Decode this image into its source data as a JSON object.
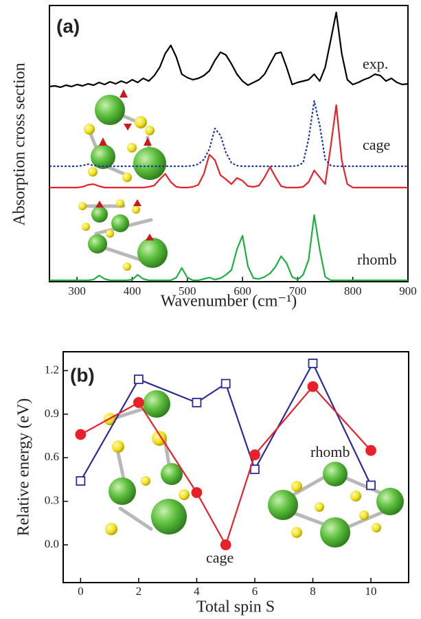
{
  "chart_data": [
    {
      "type": "line",
      "panel_label": "(a)",
      "x_label": "Wavenumber (cm⁻¹)",
      "y_label": "Absorption cross section",
      "xlim": [
        250,
        900
      ],
      "xticks": [
        300,
        400,
        500,
        600,
        700,
        800,
        900
      ],
      "x": [
        250,
        260,
        270,
        280,
        290,
        300,
        310,
        320,
        330,
        340,
        350,
        360,
        370,
        380,
        390,
        400,
        410,
        420,
        430,
        440,
        450,
        460,
        470,
        480,
        490,
        500,
        510,
        520,
        530,
        540,
        550,
        560,
        570,
        580,
        590,
        600,
        610,
        620,
        630,
        640,
        650,
        660,
        670,
        680,
        690,
        700,
        710,
        720,
        730,
        740,
        750,
        760,
        770,
        780,
        790,
        800,
        810,
        820,
        830,
        840,
        850,
        860,
        870,
        880,
        890,
        900
      ],
      "series": [
        {
          "name": "exp.",
          "color": "#000000",
          "line_style": "solid",
          "values": [
            2,
            3,
            1,
            4,
            2,
            5,
            3,
            6,
            4,
            8,
            5,
            9,
            6,
            10,
            7,
            12,
            8,
            14,
            10,
            18,
            30,
            50,
            62,
            45,
            20,
            15,
            12,
            14,
            18,
            25,
            40,
            52,
            48,
            35,
            20,
            10,
            4,
            8,
            12,
            20,
            35,
            50,
            52,
            30,
            5,
            8,
            10,
            12,
            20,
            10,
            30,
            70,
            110,
            50,
            12,
            5,
            8,
            12,
            15,
            20,
            18,
            10,
            14,
            8,
            5,
            6
          ]
        },
        {
          "name": "cage",
          "color": "#e8202a",
          "line_style": "solid",
          "values": [
            0,
            0,
            0,
            0,
            0,
            0,
            1,
            4,
            5,
            2,
            0,
            0,
            0,
            0,
            0,
            0,
            0,
            0,
            1,
            3,
            12,
            20,
            8,
            1,
            0,
            0,
            1,
            4,
            20,
            48,
            40,
            18,
            12,
            5,
            14,
            10,
            2,
            1,
            3,
            15,
            30,
            15,
            2,
            0,
            0,
            0,
            1,
            8,
            25,
            15,
            5,
            60,
            120,
            40,
            5,
            0,
            0,
            0,
            0,
            0,
            0,
            0,
            0,
            0,
            0,
            0
          ]
        },
        {
          "color": "#1a3a9c",
          "line_style": "dotted",
          "values": [
            0,
            0,
            0,
            0,
            0,
            0,
            1,
            3,
            1,
            0,
            0,
            0,
            0,
            0,
            0,
            0,
            0,
            0,
            0,
            0,
            0,
            0,
            0,
            0,
            0,
            0,
            1,
            3,
            10,
            25,
            55,
            45,
            20,
            5,
            1,
            0,
            0,
            0,
            0,
            0,
            0,
            0,
            0,
            0,
            0,
            1,
            5,
            40,
            95,
            60,
            10,
            1,
            0,
            0,
            0,
            0,
            0,
            0,
            0,
            0,
            0,
            0,
            0,
            0,
            0,
            0
          ]
        },
        {
          "name": "rhomb",
          "color": "#1ab040",
          "line_style": "solid",
          "values": [
            0,
            0,
            0,
            0,
            0,
            0,
            0,
            0,
            1,
            7,
            2,
            0,
            0,
            0,
            0,
            1,
            8,
            2,
            0,
            0,
            0,
            0,
            0,
            4,
            18,
            4,
            0,
            0,
            2,
            4,
            1,
            3,
            8,
            15,
            45,
            65,
            20,
            3,
            2,
            5,
            10,
            20,
            35,
            25,
            5,
            1,
            8,
            30,
            95,
            45,
            5,
            0,
            0,
            0,
            0,
            0,
            0,
            0,
            0,
            0,
            0,
            0,
            0,
            0,
            0,
            0
          ]
        }
      ]
    },
    {
      "type": "line",
      "panel_label": "(b)",
      "x_label": "Total spin S",
      "y_label": "Relative energy (eV)",
      "xlim": [
        -0.6,
        11.3
      ],
      "xticks": [
        0,
        2,
        4,
        6,
        8,
        10
      ],
      "ylim": [
        -0.26,
        1.33
      ],
      "yticks": [
        {
          "value": 0,
          "label": "0.0"
        },
        0.3,
        0.6,
        0.9,
        1.2
      ],
      "x": [
        0,
        2,
        4,
        5,
        6,
        8,
        10
      ],
      "series": [
        {
          "name": "rhomb",
          "color": "#2a2a9a",
          "marker": "square",
          "marker_fill": "#ffffff",
          "values": [
            0.44,
            1.14,
            0.98,
            1.11,
            0.52,
            1.25,
            0.41
          ]
        },
        {
          "name": "cage",
          "color": "#e8202a",
          "marker": "circle",
          "marker_fill": "#e8202a",
          "values": [
            0.76,
            0.98,
            0.36,
            0.0,
            0.62,
            1.09,
            0.65
          ]
        }
      ]
    }
  ]
}
